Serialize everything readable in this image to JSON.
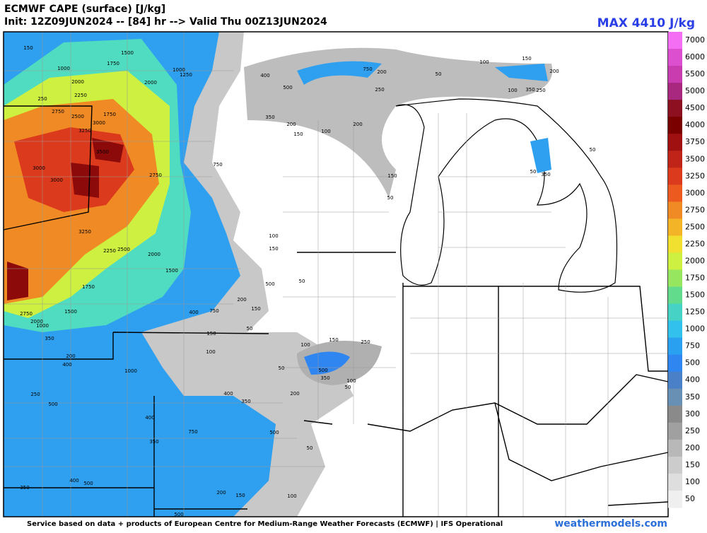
{
  "header": {
    "title": "ECMWF CAPE (surface) [J/kg]",
    "subtitle": "Init: 12Z09JUN2024 -- [84] hr --> Valid Thu 00Z13JUN2024",
    "max": "MAX 4410 J/kg"
  },
  "colorbar": {
    "labels": [
      "7000",
      "6000",
      "5500",
      "5000",
      "4500",
      "4000",
      "3750",
      "3500",
      "3250",
      "3000",
      "2750",
      "2500",
      "2250",
      "2000",
      "1750",
      "1500",
      "1250",
      "1000",
      "750",
      "500",
      "400",
      "350",
      "300",
      "250",
      "200",
      "150",
      "100",
      "50"
    ],
    "colors": [
      "#f46ef4",
      "#dc50d0",
      "#c83cb0",
      "#a82880",
      "#8c1020",
      "#7a0000",
      "#a01010",
      "#c02418",
      "#dc3a1c",
      "#ec5a20",
      "#f08a24",
      "#f4b428",
      "#f2e030",
      "#cef040",
      "#96e660",
      "#62dc8c",
      "#46d2c4",
      "#32c0ec",
      "#2aa0f0",
      "#2f86f0",
      "#4a80c8",
      "#6890b4",
      "#8a8a8a",
      "#a0a0a0",
      "#b8b8b8",
      "#cccccc",
      "#dedede",
      "#efefef"
    ]
  },
  "map_labels": [
    "150",
    "1500",
    "1000",
    "1750",
    "1000",
    "1250",
    "2000",
    "2000",
    "2250",
    "250",
    "2750",
    "2500",
    "1750",
    "3000",
    "3250",
    "3500",
    "3000",
    "2750",
    "3000",
    "3250",
    "2250",
    "2500",
    "2000",
    "1500",
    "1750",
    "1500",
    "2750",
    "2000",
    "1000",
    "350",
    "200",
    "400",
    "1000",
    "250",
    "500",
    "400",
    "750",
    "350",
    "400",
    "500",
    "350",
    "500",
    "400",
    "500",
    "350",
    "200",
    "150",
    "100",
    "200",
    "750",
    "100",
    "150",
    "500",
    "50",
    "200",
    "150",
    "750",
    "400",
    "50",
    "150",
    "100",
    "150",
    "250",
    "100",
    "50",
    "500",
    "350",
    "100",
    "50",
    "200",
    "400",
    "350",
    "50",
    "100",
    "150",
    "200",
    "750",
    "200",
    "250",
    "50",
    "100",
    "150",
    "200",
    "100",
    "350",
    "250",
    "50",
    "50",
    "350",
    "150",
    "50",
    "500"
  ],
  "footer": {
    "credit": "Service based on data + products of European Centre for Medium-Range Weather Forecasts (ECMWF) | IFS Operational",
    "site": "weathermodels.com"
  }
}
